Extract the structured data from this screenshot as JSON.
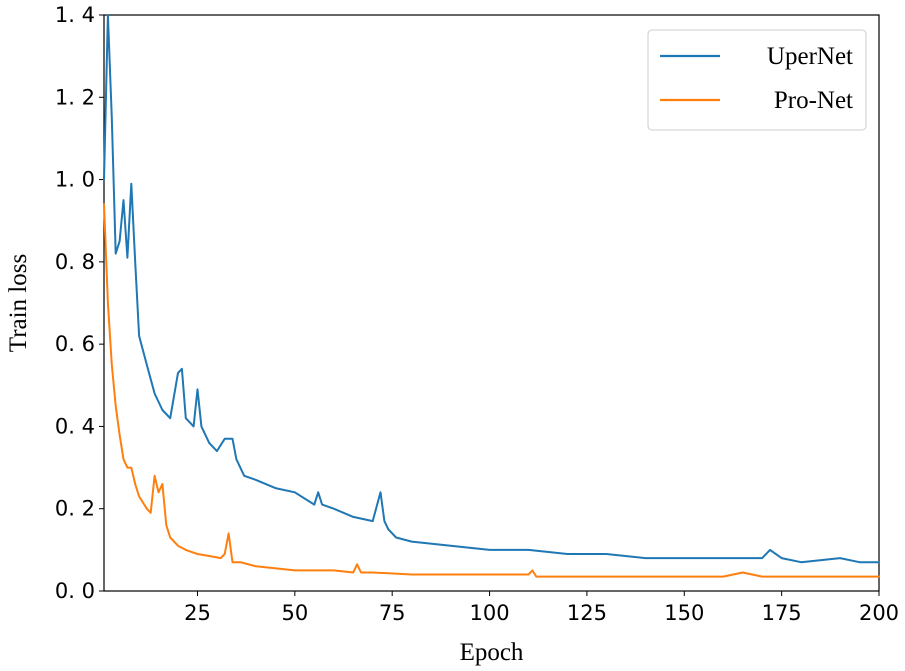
{
  "chart_data": {
    "type": "line",
    "xlabel": "Epoch",
    "ylabel": "Train loss",
    "xlim": [
      1,
      200
    ],
    "ylim": [
      0,
      1.4
    ],
    "x_ticks": [
      25,
      50,
      75,
      100,
      125,
      150,
      175,
      200
    ],
    "x_tick_labels": [
      "25",
      "50",
      "75",
      "100",
      "125",
      "150",
      "175",
      "200"
    ],
    "y_ticks": [
      0.0,
      0.2,
      0.4,
      0.6,
      0.8,
      1.0,
      1.2,
      1.4
    ],
    "y_tick_labels": [
      "0. 0",
      "0. 2",
      "0. 4",
      "0. 6",
      "0. 8",
      "1. 0",
      "1. 2",
      "1. 4"
    ],
    "grid": false,
    "legend": "top-right",
    "series": [
      {
        "name": "UperNet",
        "color": "#1f77b4",
        "x": [
          1,
          2,
          3,
          4,
          5,
          6,
          7,
          8,
          9,
          10,
          12,
          14,
          16,
          18,
          20,
          21,
          22,
          24,
          25,
          26,
          28,
          30,
          32,
          34,
          35,
          37,
          40,
          45,
          50,
          55,
          56,
          57,
          60,
          65,
          70,
          72,
          73,
          74,
          76,
          80,
          90,
          100,
          110,
          120,
          130,
          140,
          150,
          160,
          170,
          172,
          175,
          180,
          190,
          195,
          200
        ],
        "y": [
          1.0,
          1.4,
          1.15,
          0.82,
          0.85,
          0.95,
          0.81,
          0.99,
          0.8,
          0.62,
          0.55,
          0.48,
          0.44,
          0.42,
          0.53,
          0.54,
          0.42,
          0.4,
          0.49,
          0.4,
          0.36,
          0.34,
          0.37,
          0.37,
          0.32,
          0.28,
          0.27,
          0.25,
          0.24,
          0.21,
          0.24,
          0.21,
          0.2,
          0.18,
          0.17,
          0.24,
          0.17,
          0.15,
          0.13,
          0.12,
          0.11,
          0.1,
          0.1,
          0.09,
          0.09,
          0.08,
          0.08,
          0.08,
          0.08,
          0.1,
          0.08,
          0.07,
          0.08,
          0.07,
          0.07
        ]
      },
      {
        "name": "Pro-Net",
        "color": "#ff7f0e",
        "x": [
          1,
          2,
          3,
          4,
          5,
          6,
          7,
          8,
          9,
          10,
          12,
          13,
          14,
          15,
          16,
          17,
          18,
          20,
          22,
          25,
          28,
          31,
          32,
          33,
          34,
          36,
          40,
          50,
          60,
          65,
          66,
          67,
          70,
          80,
          90,
          100,
          110,
          111,
          112,
          120,
          130,
          140,
          150,
          160,
          165,
          170,
          180,
          190,
          200
        ],
        "y": [
          0.94,
          0.7,
          0.55,
          0.45,
          0.38,
          0.32,
          0.3,
          0.3,
          0.26,
          0.23,
          0.2,
          0.19,
          0.28,
          0.24,
          0.26,
          0.16,
          0.13,
          0.11,
          0.1,
          0.09,
          0.085,
          0.08,
          0.09,
          0.14,
          0.07,
          0.07,
          0.06,
          0.05,
          0.05,
          0.045,
          0.065,
          0.045,
          0.045,
          0.04,
          0.04,
          0.04,
          0.04,
          0.05,
          0.035,
          0.035,
          0.035,
          0.035,
          0.035,
          0.035,
          0.045,
          0.035,
          0.035,
          0.035,
          0.035
        ]
      }
    ]
  }
}
